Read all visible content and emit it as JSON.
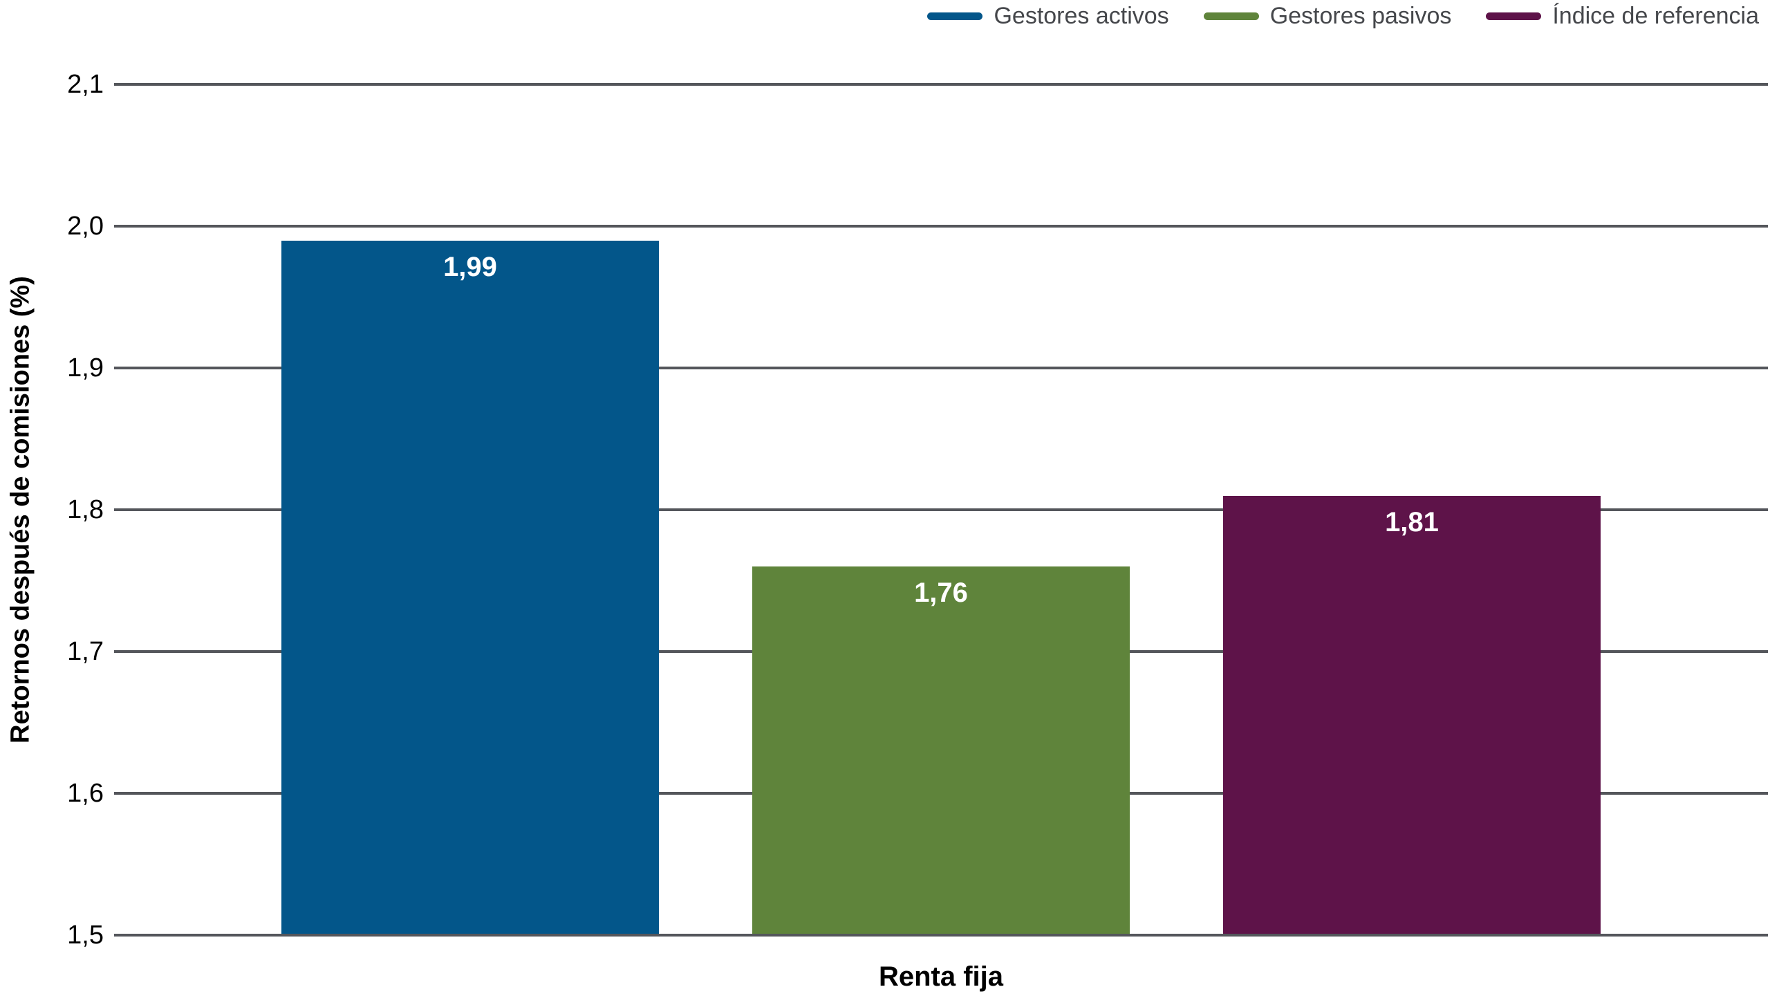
{
  "chart_data": {
    "type": "bar",
    "categories": [
      "Renta fija"
    ],
    "series": [
      {
        "name": "Gestores activos",
        "color": "#03568a",
        "values": [
          1.99
        ],
        "value_labels": [
          "1,99"
        ]
      },
      {
        "name": "Gestores pasivos",
        "color": "#5f843b",
        "values": [
          1.76
        ],
        "value_labels": [
          "1,76"
        ]
      },
      {
        "name": "Índice de referencia",
        "color": "#5e1349",
        "values": [
          1.81
        ],
        "value_labels": [
          "1,81"
        ]
      }
    ],
    "xlabel": "Renta fija",
    "ylabel": "Retornos después de comisiones (%)",
    "ylim": [
      1.5,
      2.1
    ],
    "y_tick_step": 0.1,
    "y_tick_labels": [
      "2,1",
      "2,0",
      "1,9",
      "1,8",
      "1,7",
      "1,6",
      "1,5"
    ],
    "grid": true,
    "legend_position": "top-right",
    "decimal_separator": ","
  },
  "colors": {
    "background": "#ffffff",
    "gridline": "#54565b",
    "tick_text": "#000000",
    "axis_title_text": "#000000",
    "legend_text": "#45474b",
    "bar_value_text": "#ffffff"
  }
}
